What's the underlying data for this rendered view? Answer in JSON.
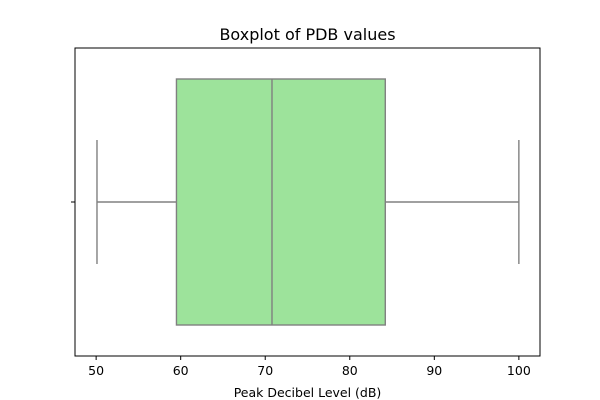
{
  "chart_data": {
    "type": "box",
    "title": "Boxplot of PDB values",
    "xlabel": "Peak Decibel Level (dB)",
    "ylabel": "",
    "orientation": "horizontal",
    "xlim": [
      47.5,
      102.5
    ],
    "xticks": [
      50,
      60,
      70,
      80,
      90,
      100
    ],
    "grid": false,
    "legend": "none",
    "box": {
      "min": 50.1,
      "q1": 59.5,
      "median": 70.8,
      "q3": 84.2,
      "max": 100.0
    },
    "colors": {
      "box_fill": "#9de39b",
      "lines": "#808080",
      "frame": "#000000"
    }
  }
}
